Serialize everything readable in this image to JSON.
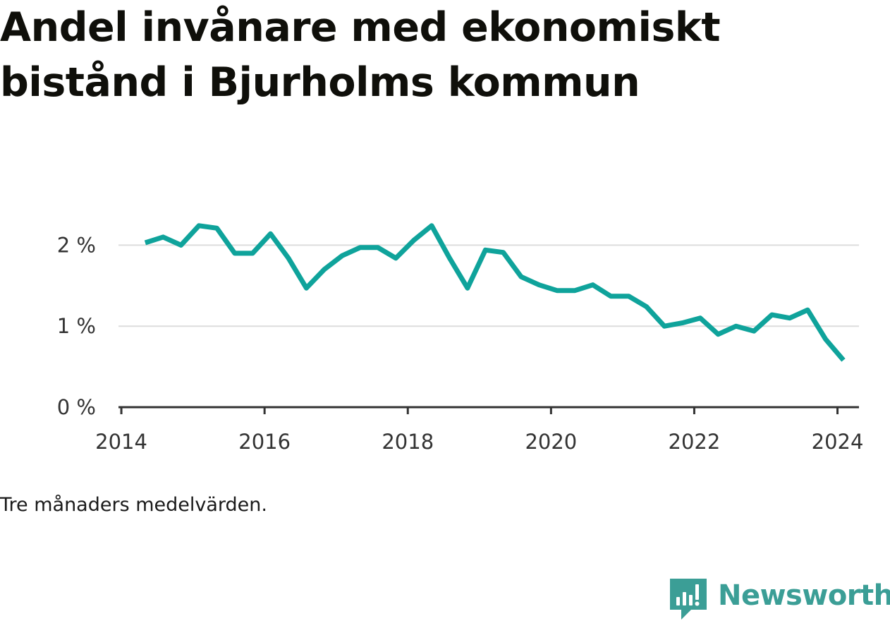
{
  "title": "Andel invånare med ekonomiskt bistånd i Bjurholms kommun",
  "note": "Tre månaders medelvärden.",
  "brand": {
    "name": "Newsworthy",
    "icon": "newsworthy-logo-icon",
    "color": "#3b9e96"
  },
  "colors": {
    "line": "#0fa39b",
    "grid": "#dddddd",
    "axis": "#333333",
    "text": "#333333"
  },
  "chart_data": {
    "type": "line",
    "title": "Andel invånare med ekonomiskt bistånd i Bjurholms kommun",
    "xlabel": "",
    "ylabel": "",
    "xlim": [
      2013.96,
      2024.3
    ],
    "ylim": [
      0,
      2.5
    ],
    "grid": true,
    "legend": "none",
    "x_ticks": [
      2014,
      2016,
      2018,
      2020,
      2022,
      2024
    ],
    "x_tick_labels": [
      "2014",
      "2016",
      "2018",
      "2020",
      "2022",
      "2024"
    ],
    "y_ticks": [
      0,
      1,
      2
    ],
    "y_tick_labels": [
      "0 %",
      "1 %",
      "2 %"
    ],
    "series": [
      {
        "x": [
          "2014-05",
          "2014-08",
          "2014-11",
          "2015-02",
          "2015-05",
          "2015-08",
          "2015-11",
          "2016-02",
          "2016-05",
          "2016-08",
          "2016-11",
          "2017-02",
          "2017-05",
          "2017-08",
          "2017-11",
          "2018-02",
          "2018-05",
          "2018-08",
          "2018-11",
          "2019-02",
          "2019-05",
          "2019-08",
          "2019-11",
          "2020-02",
          "2020-05",
          "2020-08",
          "2020-11",
          "2021-02",
          "2021-05",
          "2021-08",
          "2021-11",
          "2022-02",
          "2022-05",
          "2022-08",
          "2022-11",
          "2023-02",
          "2023-05",
          "2023-08",
          "2023-11",
          "2024-02"
        ],
        "values": [
          2.03,
          2.1,
          2.0,
          2.24,
          2.21,
          1.9,
          1.9,
          2.14,
          1.84,
          1.47,
          1.7,
          1.87,
          1.97,
          1.97,
          1.84,
          2.06,
          2.24,
          1.84,
          1.47,
          1.94,
          1.91,
          1.61,
          1.51,
          1.44,
          1.44,
          1.51,
          1.37,
          1.37,
          1.24,
          1.0,
          1.04,
          1.1,
          0.9,
          1.0,
          0.94,
          1.14,
          1.1,
          1.2,
          0.84,
          0.58
        ]
      }
    ]
  }
}
